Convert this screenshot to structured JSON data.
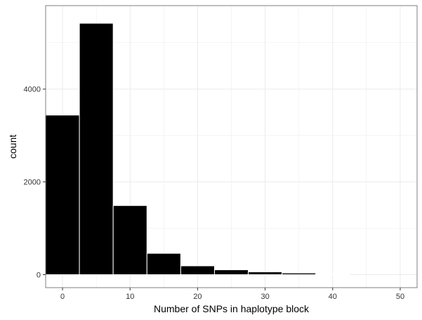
{
  "chart_data": {
    "type": "bar",
    "title": "",
    "xlabel": "Number of SNPs in haplotype block",
    "ylabel": "count",
    "xlim": [
      -2.5,
      52.5
    ],
    "ylim": [
      -280,
      5800
    ],
    "x_ticks": [
      0,
      10,
      20,
      30,
      40,
      50
    ],
    "y_ticks": [
      0,
      2000,
      4000
    ],
    "bins": [
      {
        "x_start": -2.5,
        "x_end": 2.5,
        "count": 3440
      },
      {
        "x_start": 2.5,
        "x_end": 7.5,
        "count": 5420
      },
      {
        "x_start": 7.5,
        "x_end": 12.5,
        "count": 1490
      },
      {
        "x_start": 12.5,
        "x_end": 17.5,
        "count": 460
      },
      {
        "x_start": 17.5,
        "x_end": 22.5,
        "count": 190
      },
      {
        "x_start": 22.5,
        "x_end": 27.5,
        "count": 105
      },
      {
        "x_start": 27.5,
        "x_end": 32.5,
        "count": 60
      },
      {
        "x_start": 32.5,
        "x_end": 37.5,
        "count": 35
      },
      {
        "x_start": 37.5,
        "x_end": 42.5,
        "count": 15
      }
    ],
    "bar_fill": "#000000",
    "bar_outline": "#ffffff",
    "panel_border": "#7f7f7f",
    "grid": true,
    "grid_color": "#ebebeb",
    "legend": "none"
  }
}
